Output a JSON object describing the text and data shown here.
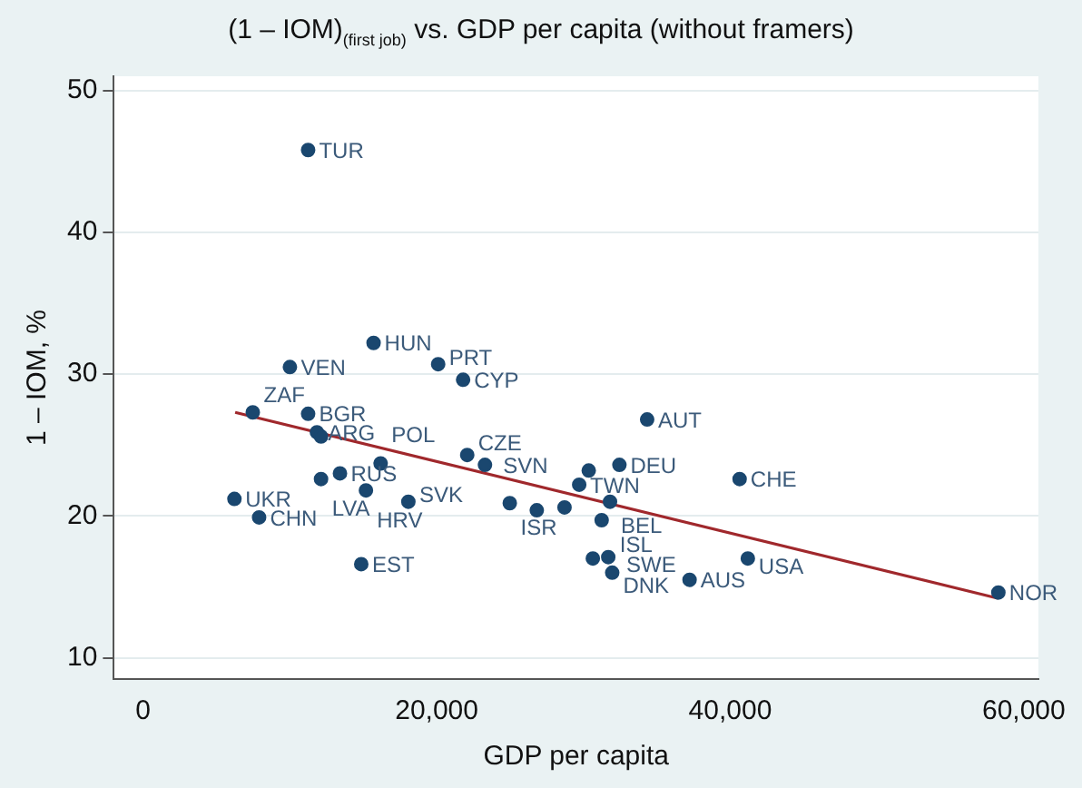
{
  "chart_data": {
    "type": "scatter",
    "title": "(1 – IOM)$_{(first job)}$ vs. GDP per capita (without framers)",
    "xlabel": "GDP per capita",
    "ylabel": "1 – IOM, %",
    "series": [
      {
        "type": "scatter",
        "marker": "circle",
        "color": "#1a476f",
        "x": [
          11240,
          15700,
          10000,
          20100,
          21800,
          7470,
          11240,
          11840,
          12120,
          12120,
          13410,
          15180,
          6220,
          7900,
          14860,
          16180,
          18070,
          22080,
          23290,
          24980,
          26820,
          28710,
          29710,
          30360,
          32450,
          31810,
          31240,
          40640,
          30640,
          31690,
          31960,
          37230,
          41200,
          34340,
          58270
        ],
        "values": [
          45.8,
          32.2,
          30.5,
          30.7,
          29.6,
          27.3,
          27.2,
          25.9,
          25.6,
          22.6,
          23.0,
          21.8,
          21.2,
          19.9,
          16.6,
          23.7,
          21.0,
          24.3,
          23.6,
          20.9,
          20.4,
          20.6,
          22.2,
          23.2,
          23.6,
          21.0,
          19.7,
          22.6,
          17.0,
          17.1,
          16.0,
          15.5,
          17.0,
          26.8,
          14.6
        ]
      },
      {
        "type": "line",
        "color": "#a0282c",
        "x": [
          6270,
          58230
        ],
        "values": [
          27.3,
          14.2
        ]
      }
    ],
    "annotations": [
      {
        "text": "TUR",
        "x": 11240,
        "y": 45.8
      },
      {
        "text": "HUN",
        "x": 15700,
        "y": 32.2
      },
      {
        "text": "VEN",
        "x": 10000,
        "y": 30.5
      },
      {
        "text": "PRT",
        "x": 20100,
        "y": 30.7
      },
      {
        "text": "CYP",
        "x": 21800,
        "y": 29.6
      },
      {
        "text": "ZAF",
        "x": 7470,
        "y": 27.3
      },
      {
        "text": "BGR",
        "x": 11240,
        "y": 27.2
      },
      {
        "text": "ARG",
        "x": 11840,
        "y": 25.9
      },
      {
        "text": "LVA",
        "x": 12120,
        "y": 22.6
      },
      {
        "text": "RUS",
        "x": 13410,
        "y": 23.0
      },
      {
        "text": "HRV",
        "x": 15180,
        "y": 21.8
      },
      {
        "text": "UKR",
        "x": 6220,
        "y": 21.2
      },
      {
        "text": "CHN",
        "x": 7900,
        "y": 19.9
      },
      {
        "text": "EST",
        "x": 14860,
        "y": 16.6
      },
      {
        "text": "POL",
        "x": 16180,
        "y": 23.7
      },
      {
        "text": "SVK",
        "x": 18070,
        "y": 21.0
      },
      {
        "text": "CZE",
        "x": 22080,
        "y": 24.3
      },
      {
        "text": "SVN",
        "x": 23290,
        "y": 23.6
      },
      {
        "text": "ISR",
        "x": 24980,
        "y": 20.9
      },
      {
        "text": "TWN",
        "x": 29710,
        "y": 22.2
      },
      {
        "text": "DEU",
        "x": 32450,
        "y": 23.6
      },
      {
        "text": "BEL",
        "x": 31810,
        "y": 21.0
      },
      {
        "text": "ISL",
        "x": 31240,
        "y": 19.7
      },
      {
        "text": "CHE",
        "x": 40640,
        "y": 22.6
      },
      {
        "text": "SWE",
        "x": 31690,
        "y": 17.1
      },
      {
        "text": "DNK",
        "x": 31960,
        "y": 16.0
      },
      {
        "text": "AUS",
        "x": 37230,
        "y": 15.5
      },
      {
        "text": "USA",
        "x": 41200,
        "y": 17.0
      },
      {
        "text": "AUT",
        "x": 34340,
        "y": 26.8
      },
      {
        "text": "NOR",
        "x": 58270,
        "y": 14.6
      }
    ],
    "xlim": [
      -2000,
      61000
    ],
    "xticks": [
      0,
      {
        "value": 20000,
        "label": "20,000"
      },
      {
        "value": 40000,
        "label": "40,000"
      },
      {
        "value": 60000,
        "label": "60,000"
      }
    ],
    "ylim": [
      8.5,
      51
    ],
    "yticks": [
      10,
      20,
      30,
      40,
      50
    ],
    "grid": "y",
    "legend": false
  }
}
